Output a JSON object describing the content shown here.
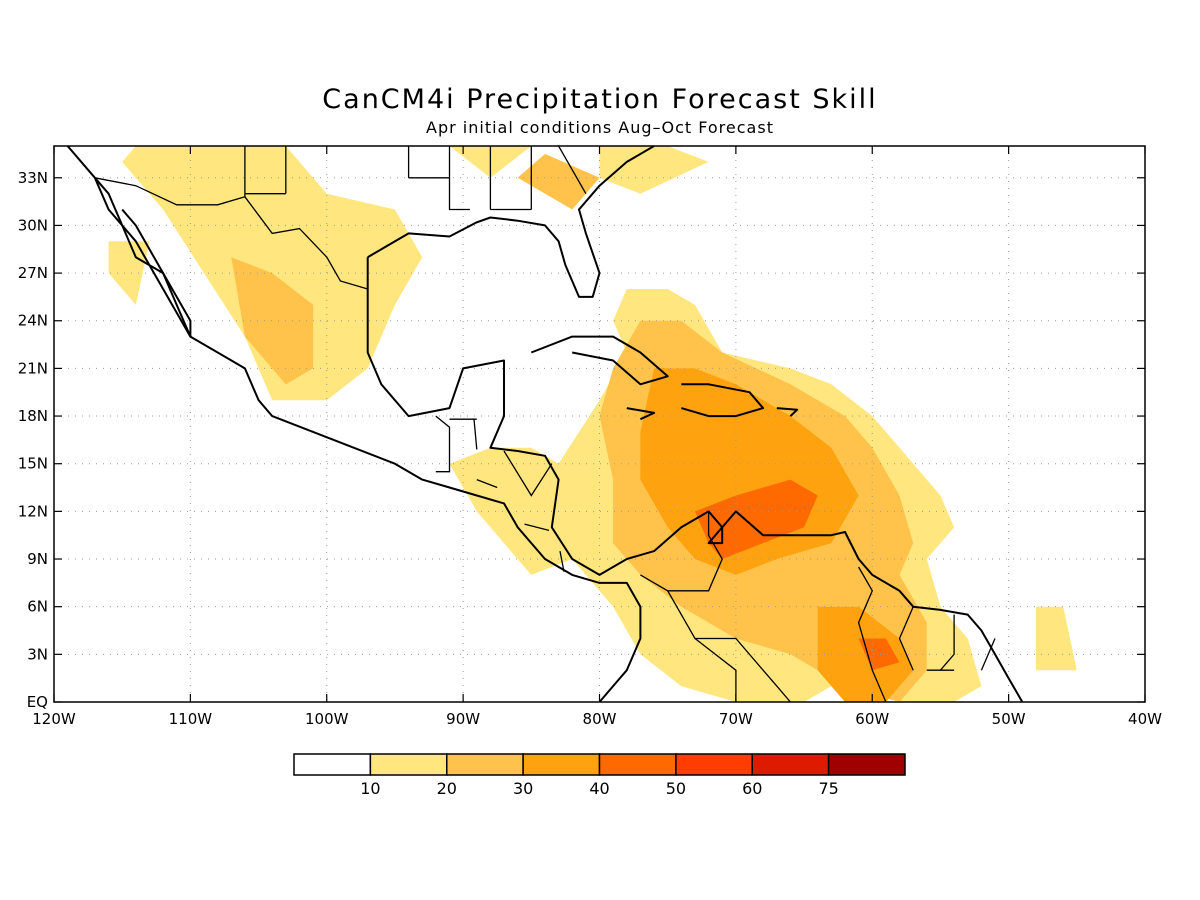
{
  "title": "CanCM4i Precipitation Forecast Skill",
  "subtitle": "Apr initial conditions  Aug–Oct Forecast",
  "map": {
    "lon_range": [
      -120,
      -40
    ],
    "lat_range": [
      0,
      35
    ],
    "lon_ticks": [
      {
        "value": -120,
        "label": "120W"
      },
      {
        "value": -110,
        "label": "110W"
      },
      {
        "value": -100,
        "label": "100W"
      },
      {
        "value": -90,
        "label": "90W"
      },
      {
        "value": -80,
        "label": "80W"
      },
      {
        "value": -70,
        "label": "70W"
      },
      {
        "value": -60,
        "label": "60W"
      },
      {
        "value": -50,
        "label": "50W"
      },
      {
        "value": -40,
        "label": "40W"
      }
    ],
    "lat_ticks": [
      {
        "value": 0,
        "label": "EQ"
      },
      {
        "value": 3,
        "label": "3N"
      },
      {
        "value": 6,
        "label": "6N"
      },
      {
        "value": 9,
        "label": "9N"
      },
      {
        "value": 12,
        "label": "12N"
      },
      {
        "value": 15,
        "label": "15N"
      },
      {
        "value": 18,
        "label": "18N"
      },
      {
        "value": 21,
        "label": "21N"
      },
      {
        "value": 24,
        "label": "24N"
      },
      {
        "value": 27,
        "label": "27N"
      },
      {
        "value": 30,
        "label": "30N"
      },
      {
        "value": 33,
        "label": "33N"
      }
    ],
    "grid": true
  },
  "colorbar": {
    "colors": [
      "#ffffff",
      "#ffe67f",
      "#ffc24a",
      "#ffa20f",
      "#ff6a00",
      "#ff3d00",
      "#de1a00",
      "#a00000"
    ],
    "labels": [
      "10",
      "20",
      "30",
      "40",
      "50",
      "60",
      "75"
    ]
  },
  "skill_regions": [
    {
      "level": 1,
      "points": [
        [
          -91,
          35
        ],
        [
          -88,
          33
        ],
        [
          -85,
          35
        ]
      ]
    },
    {
      "level": 1,
      "points": [
        [
          -80,
          35
        ],
        [
          -75,
          35
        ],
        [
          -72,
          34
        ],
        [
          -77,
          32
        ],
        [
          -80,
          33
        ]
      ]
    },
    {
      "level": 1,
      "points": [
        [
          -114,
          35
        ],
        [
          -103,
          35
        ],
        [
          -100,
          32
        ],
        [
          -95,
          31
        ],
        [
          -93,
          28
        ],
        [
          -95,
          25
        ],
        [
          -97,
          21
        ],
        [
          -100,
          19
        ],
        [
          -104,
          19
        ],
        [
          -106,
          23
        ],
        [
          -109,
          27
        ],
        [
          -112,
          31
        ],
        [
          -115,
          34
        ]
      ]
    },
    {
      "level": 1,
      "points": [
        [
          -116,
          29
        ],
        [
          -113,
          29
        ],
        [
          -114,
          25
        ],
        [
          -116,
          27
        ]
      ]
    },
    {
      "level": 1,
      "points": [
        [
          -78,
          26
        ],
        [
          -75,
          26
        ],
        [
          -73,
          25
        ],
        [
          -71,
          22
        ],
        [
          -66,
          21
        ],
        [
          -63,
          20
        ],
        [
          -60,
          18
        ],
        [
          -58,
          16
        ],
        [
          -55,
          13
        ],
        [
          -54,
          11
        ],
        [
          -56,
          9
        ],
        [
          -55,
          6
        ],
        [
          -53,
          4
        ],
        [
          -52,
          1
        ],
        [
          -54,
          0
        ],
        [
          -58,
          0
        ],
        [
          -60,
          1
        ],
        [
          -63,
          1
        ],
        [
          -65,
          0
        ],
        [
          -70,
          0
        ],
        [
          -74,
          1
        ],
        [
          -77,
          3
        ],
        [
          -79,
          6
        ],
        [
          -82,
          9
        ],
        [
          -85,
          8
        ],
        [
          -89,
          12
        ],
        [
          -91,
          15
        ],
        [
          -88,
          16
        ],
        [
          -85,
          16
        ],
        [
          -83,
          15
        ],
        [
          -80,
          19
        ],
        [
          -78,
          22
        ],
        [
          -79,
          24
        ]
      ]
    },
    {
      "level": 1,
      "points": [
        [
          -48,
          6
        ],
        [
          -46,
          6
        ],
        [
          -45,
          2
        ],
        [
          -48,
          2
        ]
      ]
    },
    {
      "level": 2,
      "points": [
        [
          -107,
          28
        ],
        [
          -104,
          27
        ],
        [
          -101,
          25
        ],
        [
          -101,
          21
        ],
        [
          -103,
          20
        ],
        [
          -106,
          23
        ]
      ]
    },
    {
      "level": 2,
      "points": [
        [
          -86,
          33
        ],
        [
          -82,
          31
        ],
        [
          -80,
          33
        ],
        [
          -84,
          34.5
        ]
      ]
    },
    {
      "level": 2,
      "points": [
        [
          -77,
          24
        ],
        [
          -74,
          24
        ],
        [
          -71,
          22
        ],
        [
          -66,
          20
        ],
        [
          -62,
          18
        ],
        [
          -60,
          16
        ],
        [
          -58,
          13
        ],
        [
          -57,
          10
        ],
        [
          -58,
          8
        ],
        [
          -56,
          5
        ],
        [
          -56,
          2
        ],
        [
          -58,
          0
        ],
        [
          -62,
          1
        ],
        [
          -66,
          3
        ],
        [
          -70,
          4
        ],
        [
          -74,
          6
        ],
        [
          -77,
          8
        ],
        [
          -79,
          10
        ],
        [
          -79,
          14
        ],
        [
          -80,
          18
        ],
        [
          -79,
          21
        ]
      ]
    },
    {
      "level": 3,
      "points": [
        [
          -76,
          21
        ],
        [
          -73,
          21
        ],
        [
          -70,
          20
        ],
        [
          -66,
          18
        ],
        [
          -63,
          16
        ],
        [
          -61,
          13
        ],
        [
          -63,
          10
        ],
        [
          -67,
          9
        ],
        [
          -70,
          8
        ],
        [
          -73,
          9
        ],
        [
          -75,
          11
        ],
        [
          -77,
          14
        ],
        [
          -77,
          17
        ]
      ]
    },
    {
      "level": 3,
      "points": [
        [
          -64,
          6
        ],
        [
          -61,
          6
        ],
        [
          -58,
          4
        ],
        [
          -57,
          2
        ],
        [
          -59,
          0
        ],
        [
          -62,
          0
        ],
        [
          -64,
          2
        ]
      ]
    },
    {
      "level": 4,
      "points": [
        [
          -73,
          12
        ],
        [
          -70,
          13
        ],
        [
          -66,
          14
        ],
        [
          -64,
          13
        ],
        [
          -65,
          11
        ],
        [
          -68,
          10
        ],
        [
          -71,
          9
        ],
        [
          -72,
          10
        ]
      ]
    },
    {
      "level": 4,
      "points": [
        [
          -61,
          4
        ],
        [
          -59,
          4
        ],
        [
          -58,
          2.5
        ],
        [
          -60,
          2
        ]
      ]
    }
  ],
  "coastlines": [
    [
      [
        -119,
        35
      ],
      [
        -117,
        33
      ],
      [
        -116,
        32
      ],
      [
        -115,
        30
      ],
      [
        -114,
        28
      ],
      [
        -112,
        27
      ],
      [
        -111,
        25
      ],
      [
        -110,
        23
      ],
      [
        -108,
        22
      ],
      [
        -106,
        21
      ],
      [
        -105,
        19
      ],
      [
        -104,
        18
      ],
      [
        -101,
        17
      ],
      [
        -98,
        16
      ],
      [
        -95,
        15
      ],
      [
        -93,
        14
      ],
      [
        -91,
        13.5
      ],
      [
        -89,
        13
      ],
      [
        -87,
        12.5
      ],
      [
        -86,
        11
      ],
      [
        -85,
        10
      ],
      [
        -84,
        9
      ],
      [
        -82,
        8
      ],
      [
        -80,
        7.5
      ],
      [
        -78,
        7.5
      ],
      [
        -77,
        6
      ],
      [
        -77,
        4
      ],
      [
        -78,
        2
      ],
      [
        -79,
        1
      ],
      [
        -80,
        0
      ]
    ],
    [
      [
        -117,
        33
      ],
      [
        -116,
        31
      ],
      [
        -114,
        29
      ],
      [
        -112,
        26
      ],
      [
        -110,
        23
      ],
      [
        -110,
        24
      ],
      [
        -112,
        27
      ],
      [
        -114,
        30
      ],
      [
        -115,
        31
      ]
    ],
    [
      [
        -97,
        28
      ],
      [
        -97,
        25
      ],
      [
        -97,
        22
      ],
      [
        -96,
        20
      ],
      [
        -94,
        18
      ],
      [
        -91,
        18.5
      ],
      [
        -90,
        21
      ],
      [
        -87,
        21.5
      ],
      [
        -87,
        18
      ],
      [
        -88,
        16
      ],
      [
        -86,
        15.8
      ],
      [
        -84,
        15.5
      ],
      [
        -83,
        14
      ],
      [
        -83.5,
        11
      ],
      [
        -82,
        9
      ],
      [
        -80,
        8
      ],
      [
        -78,
        9
      ],
      [
        -76,
        9.5
      ],
      [
        -74,
        11
      ],
      [
        -72,
        12
      ],
      [
        -71,
        11
      ],
      [
        -71,
        10
      ],
      [
        -72,
        10
      ],
      [
        -70,
        12
      ],
      [
        -68,
        10.5
      ],
      [
        -66,
        10.5
      ],
      [
        -63,
        10.5
      ],
      [
        -62,
        10.7
      ],
      [
        -61,
        9
      ],
      [
        -60,
        8
      ],
      [
        -58,
        7
      ],
      [
        -57,
        6
      ],
      [
        -55,
        5.8
      ],
      [
        -53,
        5.5
      ],
      [
        -52,
        4.5
      ],
      [
        -51,
        3
      ],
      [
        -50,
        1.5
      ],
      [
        -49,
        0
      ]
    ],
    [
      [
        -97,
        28
      ],
      [
        -94,
        29.5
      ],
      [
        -91,
        29.3
      ],
      [
        -89,
        30.2
      ],
      [
        -88,
        30.5
      ],
      [
        -86,
        30.3
      ],
      [
        -84,
        30
      ],
      [
        -83,
        29
      ],
      [
        -82.5,
        27.5
      ],
      [
        -81.5,
        25.5
      ],
      [
        -80.5,
        25.5
      ],
      [
        -80,
        27
      ],
      [
        -81,
        29.5
      ],
      [
        -81.5,
        31
      ],
      [
        -80,
        32.5
      ],
      [
        -78,
        34
      ],
      [
        -76,
        35
      ]
    ],
    [
      [
        -85,
        22
      ],
      [
        -82,
        23
      ],
      [
        -79,
        23
      ],
      [
        -77,
        22
      ],
      [
        -75,
        20.5
      ],
      [
        -77,
        20
      ],
      [
        -79,
        21.5
      ],
      [
        -82,
        22
      ]
    ],
    [
      [
        -74,
        20
      ],
      [
        -72,
        20
      ],
      [
        -69,
        19.5
      ],
      [
        -68,
        18.5
      ],
      [
        -70,
        18
      ],
      [
        -72,
        18
      ],
      [
        -74,
        18.5
      ]
    ],
    [
      [
        -78,
        18.5
      ],
      [
        -76,
        18.2
      ],
      [
        -77,
        17.8
      ]
    ],
    [
      [
        -67,
        18.5
      ],
      [
        -65.5,
        18.4
      ],
      [
        -66,
        18
      ]
    ]
  ],
  "borders": [
    [
      [
        -117,
        33
      ],
      [
        -114,
        32.5
      ],
      [
        -111,
        31.3
      ],
      [
        -108,
        31.3
      ],
      [
        -106,
        31.8
      ],
      [
        -104,
        29.5
      ],
      [
        -102,
        29.8
      ],
      [
        -100,
        28
      ],
      [
        -99,
        26.5
      ],
      [
        -97,
        26
      ]
    ],
    [
      [
        -106,
        31.8
      ],
      [
        -106,
        35
      ]
    ],
    [
      [
        -103,
        32
      ],
      [
        -103,
        35
      ]
    ],
    [
      [
        -103,
        32
      ],
      [
        -106,
        32
      ]
    ],
    [
      [
        -94,
        33
      ],
      [
        -94,
        35
      ]
    ],
    [
      [
        -91,
        33
      ],
      [
        -91,
        35
      ]
    ],
    [
      [
        -88,
        31
      ],
      [
        -88,
        35
      ]
    ],
    [
      [
        -85,
        31
      ],
      [
        -85,
        35
      ]
    ],
    [
      [
        -83,
        35
      ],
      [
        -81,
        32
      ]
    ],
    [
      [
        -94,
        33
      ],
      [
        -91,
        33
      ]
    ],
    [
      [
        -91,
        33
      ],
      [
        -91,
        31
      ],
      [
        -89.5,
        31
      ]
    ],
    [
      [
        -88,
        31
      ],
      [
        -85,
        31
      ]
    ],
    [
      [
        -92,
        18
      ],
      [
        -91,
        17.3
      ],
      [
        -91,
        14.5
      ],
      [
        -92,
        14.5
      ]
    ],
    [
      [
        -89.2,
        17.8
      ],
      [
        -89,
        15.9
      ]
    ],
    [
      [
        -89,
        17.8
      ],
      [
        -91,
        17.8
      ]
    ],
    [
      [
        -89,
        14
      ],
      [
        -87.5,
        13.5
      ]
    ],
    [
      [
        -87,
        15.8
      ],
      [
        -85,
        13
      ],
      [
        -83.5,
        15
      ]
    ],
    [
      [
        -85.5,
        11.2
      ],
      [
        -83.7,
        10.8
      ]
    ],
    [
      [
        -82.9,
        9.5
      ],
      [
        -82.6,
        8.2
      ]
    ],
    [
      [
        -77,
        8
      ],
      [
        -75,
        7
      ],
      [
        -72,
        7
      ],
      [
        -71,
        9
      ],
      [
        -72,
        10.5
      ],
      [
        -72,
        12
      ]
    ],
    [
      [
        -75,
        7
      ],
      [
        -73,
        4
      ],
      [
        -70,
        4
      ],
      [
        -68,
        2
      ],
      [
        -67,
        1
      ],
      [
        -66,
        0
      ]
    ],
    [
      [
        -70,
        0
      ],
      [
        -70,
        2
      ],
      [
        -73,
        4
      ]
    ],
    [
      [
        -61,
        8.5
      ],
      [
        -60,
        7
      ],
      [
        -61,
        5
      ],
      [
        -60,
        2
      ],
      [
        -59,
        0
      ]
    ],
    [
      [
        -57,
        6
      ],
      [
        -58,
        4
      ],
      [
        -57,
        2
      ]
    ],
    [
      [
        -54,
        5.5
      ],
      [
        -54,
        3
      ],
      [
        -55,
        2
      ]
    ],
    [
      [
        -52,
        2
      ],
      [
        -51,
        4
      ]
    ],
    [
      [
        -56,
        2
      ],
      [
        -54,
        2
      ]
    ]
  ]
}
